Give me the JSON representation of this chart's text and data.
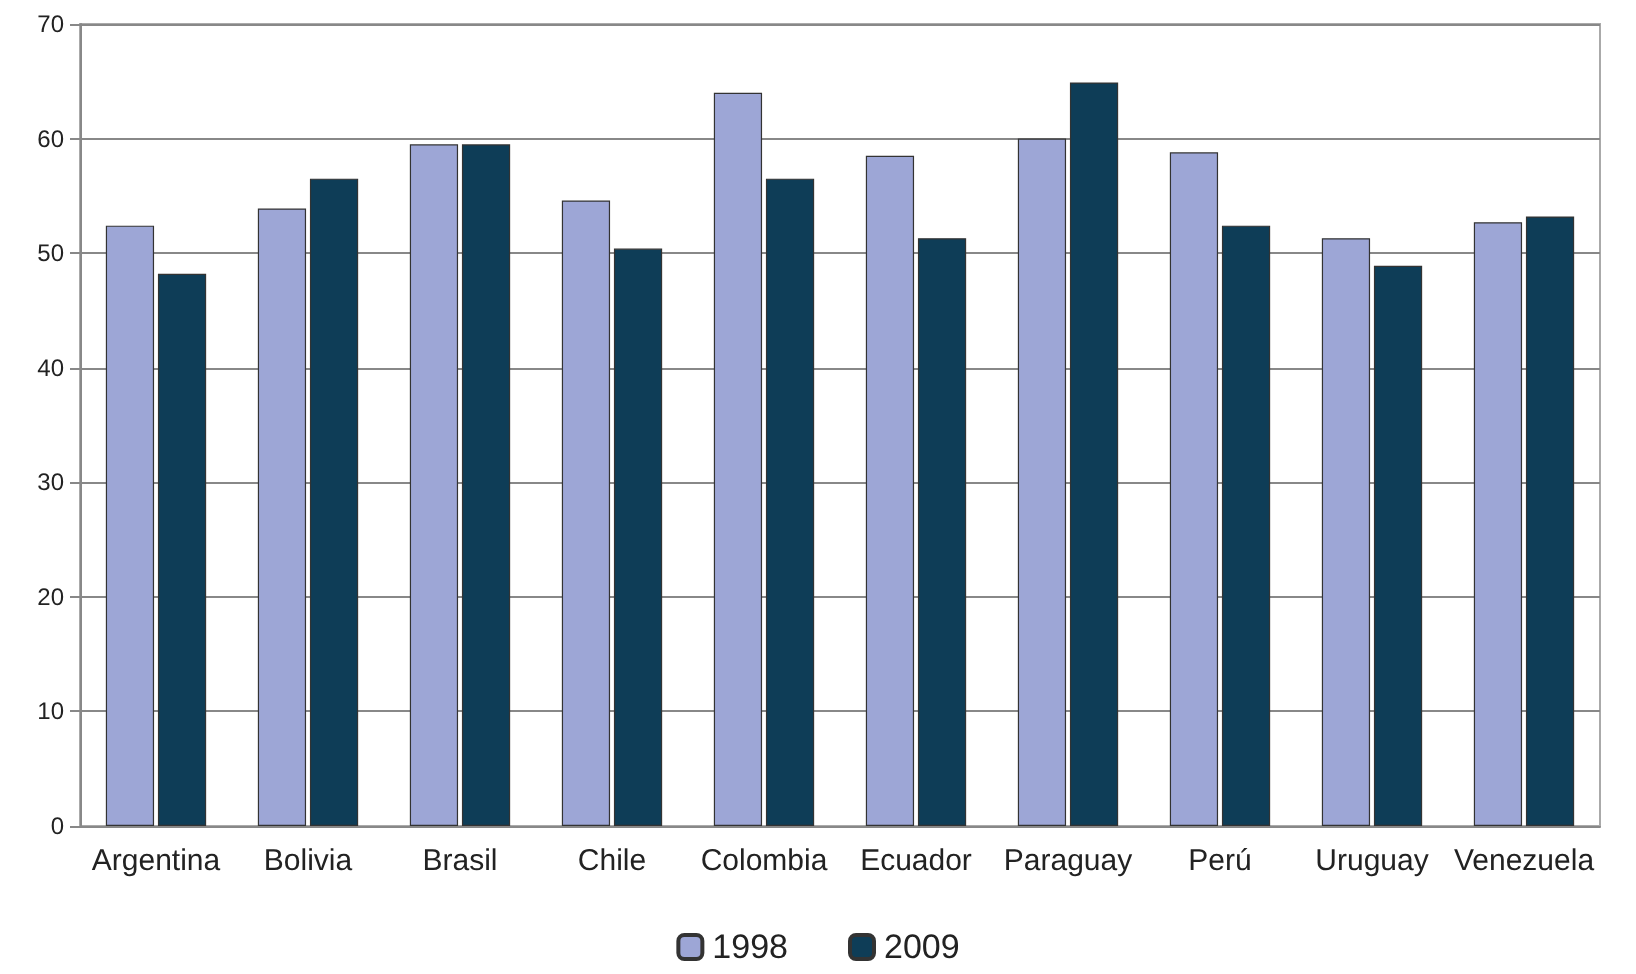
{
  "chart_data": {
    "type": "bar",
    "categories": [
      "Argentina",
      "Bolivia",
      "Brasil",
      "Chile",
      "Colombia",
      "Ecuador",
      "Paraguay",
      "Perú",
      "Uruguay",
      "Venezuela"
    ],
    "series": [
      {
        "name": "1998",
        "color": "#9da6d6",
        "values": [
          52.4,
          53.9,
          59.5,
          54.6,
          64.0,
          58.5,
          60.0,
          58.8,
          51.3,
          52.7
        ]
      },
      {
        "name": "2009",
        "color": "#0e3d57",
        "values": [
          48.2,
          56.5,
          59.5,
          50.4,
          56.5,
          51.3,
          64.9,
          52.4,
          48.9,
          53.2
        ]
      }
    ],
    "ylim": [
      0,
      70
    ],
    "yticks": [
      0,
      10,
      20,
      30,
      40,
      50,
      60,
      70
    ],
    "grid": "y",
    "legend": "bottom"
  }
}
